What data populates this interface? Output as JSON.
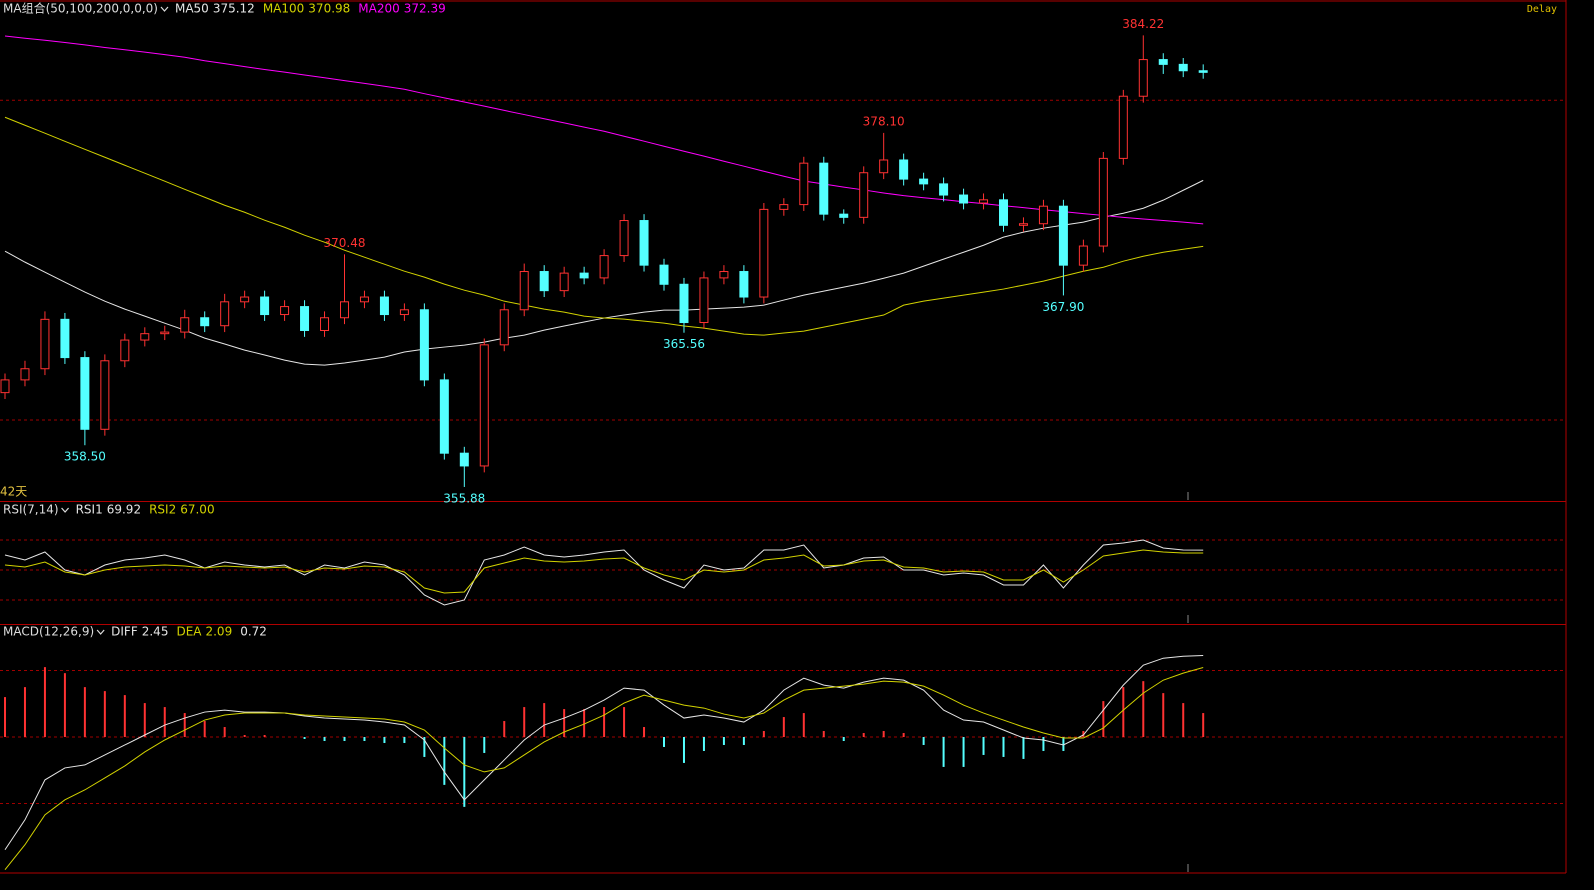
{
  "status": "Delay",
  "chart_data": [
    {
      "type": "candlestick",
      "title": "MA组合(50,100,200,0,0,0)",
      "note": "42天",
      "ylim": [
        355,
        386
      ],
      "gridlines": [
        380.15,
        360.08
      ],
      "up_color": "#ff3232",
      "down_color": "#54ffff",
      "open": [
        361.8,
        362.6,
        363.3,
        366.4,
        364.0,
        359.5,
        363.8,
        365.1,
        365.5,
        365.6,
        366.5,
        366.0,
        367.5,
        367.8,
        366.7,
        367.2,
        365.7,
        366.5,
        367.5,
        367.8,
        366.7,
        367.0,
        362.6,
        358.0,
        357.2,
        364.8,
        367.0,
        369.4,
        368.2,
        369.3,
        369.0,
        370.4,
        372.6,
        369.8,
        368.6,
        366.2,
        369.0,
        369.4,
        367.8,
        373.3,
        373.6,
        376.2,
        373.0,
        372.8,
        375.6,
        376.4,
        375.2,
        374.9,
        374.2,
        373.7,
        373.9,
        372.3,
        372.4,
        373.5,
        369.8,
        371.0,
        376.5,
        380.4,
        382.7,
        382.4,
        382.0
      ],
      "high": [
        363.0,
        363.8,
        366.9,
        366.8,
        364.4,
        364.2,
        365.5,
        365.9,
        366.0,
        367.0,
        366.9,
        368.0,
        368.2,
        368.2,
        367.6,
        367.6,
        366.9,
        370.48,
        368.2,
        368.2,
        367.4,
        367.4,
        363.0,
        358.4,
        365.2,
        367.4,
        369.9,
        369.8,
        369.7,
        369.7,
        370.8,
        373.0,
        373.0,
        370.2,
        369.0,
        369.4,
        369.8,
        369.8,
        373.7,
        374.0,
        376.6,
        376.6,
        373.3,
        376.0,
        378.1,
        376.8,
        375.6,
        375.3,
        374.6,
        374.3,
        374.3,
        372.8,
        373.9,
        373.9,
        371.4,
        376.9,
        380.8,
        384.22,
        383.1,
        382.8,
        382.4
      ],
      "low": [
        361.4,
        362.2,
        362.9,
        363.6,
        358.5,
        359.1,
        363.4,
        364.7,
        365.1,
        365.2,
        365.6,
        365.6,
        367.1,
        366.3,
        366.3,
        365.3,
        365.3,
        366.1,
        367.1,
        366.3,
        366.3,
        362.2,
        357.6,
        355.88,
        356.8,
        364.4,
        366.6,
        367.8,
        367.8,
        368.6,
        368.6,
        370.0,
        369.4,
        368.2,
        365.56,
        365.8,
        368.6,
        367.4,
        367.4,
        372.9,
        373.2,
        372.6,
        372.4,
        372.4,
        375.2,
        374.8,
        374.5,
        373.8,
        373.3,
        373.3,
        371.9,
        371.9,
        372.0,
        367.9,
        369.4,
        370.6,
        376.1,
        380.0,
        381.8,
        381.6,
        381.5
      ],
      "close": [
        362.6,
        363.3,
        366.4,
        364.0,
        359.5,
        363.8,
        365.1,
        365.5,
        365.6,
        366.5,
        366.0,
        367.5,
        367.8,
        366.7,
        367.2,
        365.7,
        366.5,
        367.5,
        367.8,
        366.7,
        367.0,
        362.6,
        358.0,
        357.2,
        364.8,
        367.0,
        369.4,
        368.2,
        369.3,
        369.0,
        370.4,
        372.6,
        369.8,
        368.6,
        366.2,
        369.0,
        369.4,
        367.8,
        373.3,
        373.6,
        376.2,
        373.0,
        372.8,
        375.6,
        376.4,
        375.2,
        374.9,
        374.2,
        373.7,
        373.9,
        372.3,
        372.4,
        373.5,
        369.8,
        371.0,
        376.5,
        380.4,
        382.7,
        382.4,
        382.0,
        381.9
      ],
      "annotations": [
        {
          "value": 384.22,
          "label": "384.22"
        },
        {
          "value": 378.1,
          "label": "378.10"
        },
        {
          "value": 370.48,
          "label": "370.48"
        },
        {
          "value": 358.5,
          "label": "358.50"
        },
        {
          "value": 355.88,
          "label": "355.88"
        },
        {
          "value": 365.56,
          "label": "365.56"
        },
        {
          "value": 367.9,
          "label": "367.90"
        }
      ],
      "series": [
        {
          "name": "MA50",
          "color": "#e6e6e6",
          "legend_value": "375.12",
          "values": [
            370.68,
            369.99,
            369.36,
            368.73,
            368.11,
            367.54,
            367.04,
            366.6,
            366.16,
            365.72,
            365.22,
            364.85,
            364.47,
            364.16,
            363.84,
            363.59,
            363.53,
            363.66,
            363.84,
            364.03,
            364.35,
            364.53,
            364.66,
            364.78,
            364.97,
            365.22,
            365.41,
            365.72,
            365.98,
            366.23,
            366.48,
            366.67,
            366.85,
            366.98,
            366.98,
            367.04,
            367.1,
            367.17,
            367.29,
            367.61,
            367.92,
            368.17,
            368.42,
            368.67,
            368.98,
            369.3,
            369.74,
            370.18,
            370.61,
            371.05,
            371.56,
            371.87,
            372.12,
            372.31,
            372.5,
            372.81,
            373.06,
            373.37,
            373.88,
            374.5,
            375.12
          ]
        },
        {
          "name": "MA100",
          "color": "#d2d200",
          "legend_value": "370.98",
          "values": [
            379.08,
            378.58,
            378.08,
            377.57,
            377.07,
            376.57,
            376.07,
            375.57,
            375.07,
            374.56,
            374.06,
            373.56,
            373.12,
            372.62,
            372.18,
            371.68,
            371.24,
            370.74,
            370.3,
            369.86,
            369.42,
            369.05,
            368.61,
            368.23,
            367.92,
            367.54,
            367.29,
            367.04,
            366.85,
            366.6,
            366.48,
            366.41,
            366.29,
            366.16,
            365.98,
            365.85,
            365.66,
            365.47,
            365.41,
            365.54,
            365.66,
            365.91,
            366.16,
            366.41,
            366.67,
            367.29,
            367.54,
            367.73,
            367.92,
            368.11,
            368.3,
            368.55,
            368.8,
            369.11,
            369.42,
            369.67,
            370.05,
            370.36,
            370.61,
            370.8,
            370.98
          ]
        },
        {
          "name": "MA200",
          "color": "#ff00ff",
          "legend_value": "372.39",
          "values": [
            384.18,
            384.04,
            383.91,
            383.77,
            383.62,
            383.46,
            383.32,
            383.17,
            383.01,
            382.85,
            382.63,
            382.45,
            382.26,
            382.08,
            381.91,
            381.73,
            381.56,
            381.38,
            381.21,
            381.03,
            380.84,
            380.56,
            380.3,
            380.04,
            379.78,
            379.51,
            379.25,
            378.99,
            378.73,
            378.46,
            378.2,
            377.89,
            377.58,
            377.26,
            376.95,
            376.64,
            376.32,
            376.01,
            375.69,
            375.38,
            375.08,
            374.89,
            374.7,
            374.52,
            374.33,
            374.16,
            374.03,
            373.91,
            373.78,
            373.66,
            373.53,
            373.41,
            373.28,
            373.16,
            373.03,
            372.92,
            372.8,
            372.7,
            372.6,
            372.5,
            372.39
          ]
        }
      ]
    },
    {
      "type": "line",
      "title": "RSI(7,14)",
      "ylim": [
        0,
        100
      ],
      "gridlines": [
        80,
        50,
        20
      ],
      "series": [
        {
          "name": "RSI1",
          "color": "#e6e6e6",
          "legend_value": "69.92",
          "values": [
            65,
            60,
            68,
            50,
            45,
            55,
            60,
            62,
            65,
            60,
            52,
            58,
            55,
            53,
            55,
            45,
            55,
            52,
            58,
            55,
            45,
            25,
            15,
            20,
            60,
            65,
            73,
            65,
            63,
            65,
            68,
            70,
            50,
            40,
            32,
            55,
            50,
            52,
            70,
            70,
            75,
            52,
            55,
            62,
            63,
            50,
            50,
            45,
            47,
            45,
            35,
            35,
            55,
            32,
            55,
            75,
            77,
            80,
            72,
            70,
            69.92
          ]
        },
        {
          "name": "RSI2",
          "color": "#d2d200",
          "legend_value": "67.00",
          "values": [
            55,
            53,
            58,
            48,
            45,
            50,
            53,
            54,
            55,
            54,
            52,
            54,
            53,
            52,
            53,
            48,
            52,
            51,
            54,
            53,
            48,
            32,
            27,
            28,
            52,
            57,
            62,
            59,
            58,
            59,
            61,
            62,
            52,
            45,
            40,
            50,
            48,
            50,
            60,
            62,
            65,
            54,
            55,
            59,
            60,
            53,
            52,
            48,
            49,
            48,
            40,
            40,
            50,
            38,
            50,
            64,
            67,
            70,
            68,
            67,
            67
          ]
        }
      ]
    },
    {
      "type": "macd",
      "title": "MACD(12,26,9)",
      "ylim": [
        -4,
        4
      ],
      "gridlines": [
        2,
        0,
        -2
      ],
      "series": [
        {
          "name": "DIFF",
          "color": "#e6e6e6",
          "legend_value": "2.45",
          "values": [
            -3.39,
            -2.49,
            -1.29,
            -0.93,
            -0.84,
            -0.54,
            -0.24,
            0.06,
            0.36,
            0.57,
            0.75,
            0.81,
            0.75,
            0.75,
            0.72,
            0.63,
            0.57,
            0.54,
            0.51,
            0.45,
            0.36,
            -0.09,
            -1.05,
            -1.89,
            -1.29,
            -0.69,
            -0.09,
            0.36,
            0.57,
            0.81,
            1.11,
            1.47,
            1.41,
            0.96,
            0.57,
            0.66,
            0.57,
            0.45,
            0.81,
            1.41,
            1.77,
            1.56,
            1.47,
            1.65,
            1.77,
            1.71,
            1.41,
            0.81,
            0.51,
            0.45,
            0.21,
            -0.03,
            -0.09,
            -0.24,
            0.06,
            0.81,
            1.56,
            2.16,
            2.37,
            2.43,
            2.45
          ]
        },
        {
          "name": "DEA",
          "color": "#d2d200",
          "legend_value": "2.09",
          "values": [
            -3.99,
            -3.24,
            -2.34,
            -1.89,
            -1.59,
            -1.23,
            -0.87,
            -0.45,
            -0.09,
            0.21,
            0.51,
            0.66,
            0.72,
            0.72,
            0.72,
            0.66,
            0.63,
            0.6,
            0.57,
            0.54,
            0.45,
            0.21,
            -0.33,
            -0.84,
            -1.05,
            -0.93,
            -0.54,
            -0.15,
            0.15,
            0.39,
            0.66,
            1.02,
            1.26,
            1.11,
            0.96,
            0.87,
            0.69,
            0.57,
            0.72,
            1.11,
            1.41,
            1.47,
            1.53,
            1.59,
            1.68,
            1.65,
            1.53,
            1.26,
            0.96,
            0.72,
            0.51,
            0.3,
            0.12,
            -0.03,
            -0.03,
            0.27,
            0.81,
            1.32,
            1.71,
            1.92,
            2.09
          ]
        }
      ],
      "histogram": {
        "up_color": "#ff3232",
        "down_color": "#54ffff",
        "legend_value": "0.72",
        "values": [
          1.2,
          1.5,
          2.1,
          1.92,
          1.5,
          1.38,
          1.26,
          1.02,
          0.9,
          0.72,
          0.48,
          0.3,
          0.06,
          0.06,
          0.0,
          -0.06,
          -0.12,
          -0.12,
          -0.12,
          -0.18,
          -0.18,
          -0.6,
          -1.44,
          -2.1,
          -0.48,
          0.48,
          0.9,
          1.02,
          0.84,
          0.84,
          0.9,
          0.9,
          0.3,
          -0.3,
          -0.78,
          -0.42,
          -0.24,
          -0.24,
          0.18,
          0.6,
          0.72,
          0.18,
          -0.12,
          0.12,
          0.18,
          0.12,
          -0.24,
          -0.9,
          -0.9,
          -0.54,
          -0.6,
          -0.66,
          -0.42,
          -0.42,
          0.18,
          1.08,
          1.5,
          1.68,
          1.32,
          1.02,
          0.72
        ]
      }
    }
  ]
}
